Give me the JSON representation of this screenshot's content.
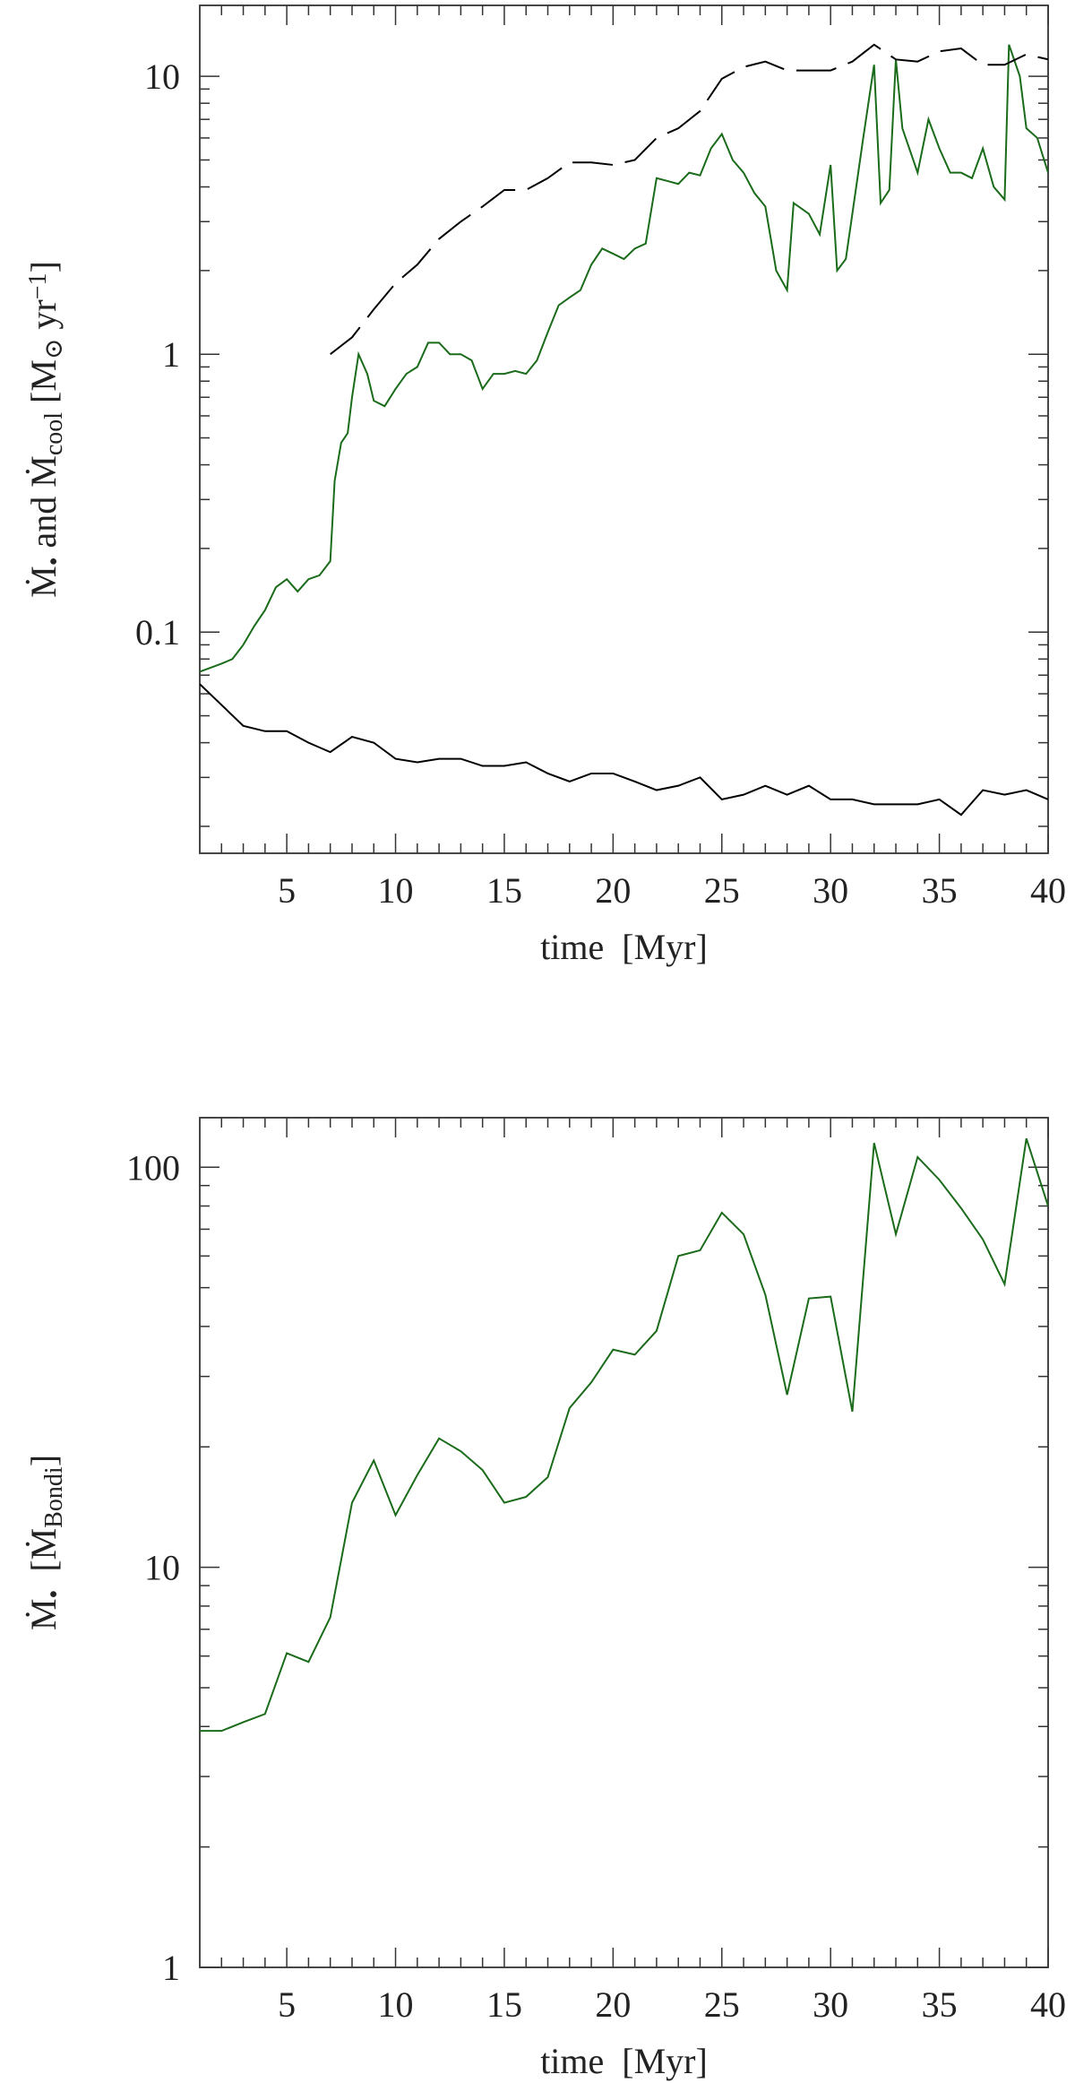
{
  "chart_data": [
    {
      "type": "line",
      "log_y": true,
      "xlabel": "time  [Myr]",
      "ylabel_parts": [
        "Ṁ",
        "•",
        " and Ṁ",
        "cool",
        " [M",
        "⊙",
        " yr",
        "−1",
        "]"
      ],
      "ylabel_styles": [
        "",
        "sub",
        "",
        "sub",
        "",
        "sub",
        "",
        "sup",
        ""
      ],
      "xlim": [
        1,
        40
      ],
      "ylim": [
        0.016,
        18
      ],
      "xticks": [
        5,
        10,
        15,
        20,
        25,
        30,
        35,
        40
      ],
      "xminorticks": [
        2,
        3,
        4,
        6,
        7,
        8,
        9,
        11,
        12,
        13,
        14,
        16,
        17,
        18,
        19,
        21,
        22,
        23,
        24,
        26,
        27,
        28,
        29,
        31,
        32,
        33,
        34,
        36,
        37,
        38,
        39
      ],
      "yticks": [
        0.1,
        1,
        10
      ],
      "yminorticks": [
        0.02,
        0.03,
        0.04,
        0.05,
        0.06,
        0.07,
        0.08,
        0.09,
        0.2,
        0.3,
        0.4,
        0.5,
        0.6,
        0.7,
        0.8,
        0.9,
        2,
        3,
        4,
        5,
        6,
        7,
        8,
        9
      ],
      "series": [
        {
          "color": "#1a6b1a",
          "linestyle": "solid",
          "x": [
            1,
            2,
            2.5,
            3,
            3.5,
            4,
            4.5,
            5,
            5.5,
            6,
            6.5,
            7,
            7.2,
            7.5,
            7.8,
            8,
            8.3,
            8.7,
            9,
            9.5,
            10,
            10.5,
            11,
            11.5,
            12,
            12.5,
            13,
            13.5,
            14,
            14.5,
            15,
            15.5,
            16,
            16.5,
            17,
            17.5,
            18,
            18.5,
            19,
            19.5,
            20,
            20.5,
            21,
            21.5,
            22,
            22.5,
            23,
            23.5,
            24,
            24.5,
            25,
            25.5,
            26,
            26.5,
            27,
            27.5,
            28,
            28.3,
            29,
            29.5,
            30,
            30.3,
            30.7,
            31,
            31.5,
            32,
            32.3,
            32.7,
            33,
            33.3,
            34,
            34.5,
            35,
            35.5,
            36,
            36.5,
            37,
            37.5,
            38,
            38.2,
            38.7,
            39,
            39.5,
            40
          ],
          "values": [
            0.072,
            0.077,
            0.08,
            0.09,
            0.105,
            0.12,
            0.145,
            0.155,
            0.14,
            0.155,
            0.16,
            0.18,
            0.35,
            0.48,
            0.52,
            0.7,
            1.0,
            0.85,
            0.68,
            0.65,
            0.75,
            0.85,
            0.9,
            1.1,
            1.1,
            1.0,
            1.0,
            0.95,
            0.75,
            0.85,
            0.85,
            0.87,
            0.85,
            0.95,
            1.2,
            1.5,
            1.6,
            1.7,
            2.1,
            2.4,
            2.3,
            2.2,
            2.4,
            2.5,
            4.3,
            4.2,
            4.1,
            4.5,
            4.4,
            5.5,
            6.2,
            5.0,
            4.5,
            3.8,
            3.4,
            2.0,
            1.7,
            3.5,
            3.2,
            2.7,
            4.8,
            2.0,
            2.2,
            3.2,
            6.0,
            11.0,
            3.5,
            3.9,
            11.5,
            6.5,
            4.5,
            7.0,
            5.5,
            4.5,
            4.5,
            4.3,
            5.5,
            4.0,
            3.6,
            13.0,
            10.0,
            6.5,
            6.0,
            4.5
          ]
        },
        {
          "color": "#000000",
          "linestyle": "dashed",
          "x": [
            7,
            8,
            9,
            10,
            11,
            12,
            13,
            14,
            15,
            16,
            17,
            18,
            19,
            20,
            21,
            22,
            23,
            24,
            25,
            26,
            27,
            28,
            29,
            30,
            31,
            32,
            33,
            34,
            35,
            36,
            37,
            38,
            39,
            40
          ],
          "values": [
            1.0,
            1.15,
            1.45,
            1.8,
            2.1,
            2.6,
            3.0,
            3.4,
            3.9,
            3.9,
            4.3,
            4.9,
            4.9,
            4.8,
            5.0,
            6.0,
            6.5,
            7.5,
            9.8,
            10.8,
            11.3,
            10.5,
            10.5,
            10.5,
            11.3,
            13.0,
            11.5,
            11.3,
            12.3,
            12.6,
            11.0,
            11.0,
            12.0,
            11.5
          ]
        },
        {
          "color": "#000000",
          "linestyle": "solid",
          "x": [
            1,
            3,
            4,
            5,
            6,
            7,
            8,
            9,
            10,
            11,
            12,
            13,
            14,
            15,
            16,
            17,
            18,
            19,
            20,
            21,
            22,
            23,
            24,
            25,
            26,
            27,
            28,
            29,
            30,
            31,
            32,
            33,
            34,
            35,
            36,
            37,
            38,
            39,
            40
          ],
          "values": [
            0.065,
            0.046,
            0.044,
            0.044,
            0.04,
            0.037,
            0.042,
            0.04,
            0.035,
            0.034,
            0.035,
            0.035,
            0.033,
            0.033,
            0.034,
            0.031,
            0.029,
            0.031,
            0.031,
            0.029,
            0.027,
            0.028,
            0.03,
            0.025,
            0.026,
            0.028,
            0.026,
            0.028,
            0.025,
            0.025,
            0.024,
            0.024,
            0.024,
            0.025,
            0.022,
            0.027,
            0.026,
            0.027,
            0.025
          ]
        }
      ]
    },
    {
      "type": "line",
      "log_y": true,
      "xlabel": "time  [Myr]",
      "ylabel_parts": [
        "Ṁ",
        "•",
        "  [Ṁ",
        "Bondi",
        "]"
      ],
      "ylabel_styles": [
        "",
        "sub",
        "",
        "sub",
        ""
      ],
      "xlim": [
        1,
        40
      ],
      "ylim": [
        1,
        133
      ],
      "xticks": [
        5,
        10,
        15,
        20,
        25,
        30,
        35,
        40
      ],
      "xminorticks": [
        2,
        3,
        4,
        6,
        7,
        8,
        9,
        11,
        12,
        13,
        14,
        16,
        17,
        18,
        19,
        21,
        22,
        23,
        24,
        26,
        27,
        28,
        29,
        31,
        32,
        33,
        34,
        36,
        37,
        38,
        39
      ],
      "yticks": [
        1,
        10,
        100
      ],
      "yminorticks": [
        2,
        3,
        4,
        5,
        6,
        7,
        8,
        9,
        20,
        30,
        40,
        50,
        60,
        70,
        80,
        90
      ],
      "series": [
        {
          "color": "#1a6b1a",
          "linestyle": "solid",
          "x": [
            1,
            2,
            3,
            4,
            5,
            6,
            7,
            8,
            9,
            10,
            11,
            12,
            13,
            14,
            15,
            16,
            17,
            18,
            19,
            20,
            21,
            22,
            23,
            24,
            25,
            26,
            27,
            28,
            29,
            30,
            31,
            32,
            33,
            34,
            35,
            36,
            37,
            38,
            39,
            40
          ],
          "values": [
            3.9,
            3.9,
            4.1,
            4.3,
            6.1,
            5.8,
            7.5,
            14.5,
            18.5,
            13.5,
            17,
            21,
            19.5,
            17.5,
            14.5,
            15,
            16.8,
            25,
            29,
            35,
            34,
            39,
            60,
            62,
            77,
            68,
            48,
            27,
            47,
            47.5,
            24.5,
            115,
            68,
            106,
            93,
            79,
            66,
            51,
            118,
            80
          ]
        }
      ]
    }
  ]
}
